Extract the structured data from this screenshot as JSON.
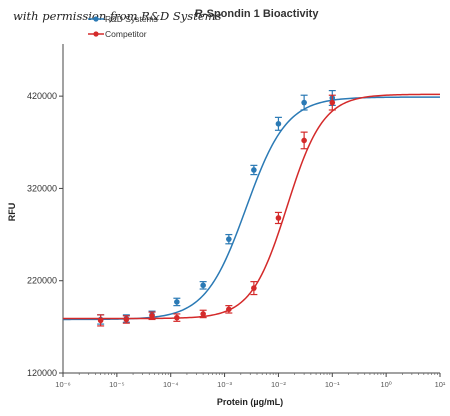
{
  "watermark": "with permission from R&D Systems",
  "chart_data": {
    "type": "scatter",
    "title": "R-Spondin 1 Bioactivity",
    "xlabel": "Protein (µg/mL)",
    "ylabel": "RFU",
    "x_scale": "log",
    "xlim": [
      1e-06,
      10
    ],
    "ylim": [
      120000,
      470000
    ],
    "y_ticks": [
      120000,
      220000,
      320000,
      420000
    ],
    "y_tick_labels": [
      "120000",
      "220000",
      "320000",
      "420000"
    ],
    "x_ticks": [
      1e-06,
      1e-05,
      0.0001,
      0.001,
      0.01,
      0.1,
      1,
      10
    ],
    "x_tick_labels": [
      "10⁻⁶",
      "10⁻⁵",
      "10⁻⁴",
      "10⁻³",
      "10⁻²",
      "10⁻¹",
      "10⁰",
      "10¹"
    ],
    "legend_position": "top-left",
    "grid": false,
    "series": [
      {
        "name": "R&D Systems",
        "color": "#2b7ab5",
        "x": [
          5e-06,
          1.5e-05,
          4.5e-05,
          0.00013,
          0.0004,
          0.0012,
          0.0035,
          0.01,
          0.03,
          0.1
        ],
        "y": [
          178000,
          179000,
          183000,
          197000,
          215000,
          265000,
          340000,
          390000,
          413000,
          418000
        ],
        "err": [
          5000,
          4000,
          4000,
          4000,
          4000,
          5000,
          5000,
          7000,
          8000,
          8000
        ],
        "fit": {
          "bottom": 178000,
          "top": 419000,
          "ec50": 0.0025,
          "hill": 1.15
        }
      },
      {
        "name": "Competitor",
        "color": "#d42a2a",
        "x": [
          5e-06,
          1.5e-05,
          4.5e-05,
          0.00013,
          0.0004,
          0.0012,
          0.0035,
          0.01,
          0.03,
          0.1
        ],
        "y": [
          177000,
          178000,
          182000,
          180000,
          184000,
          189000,
          212000,
          288000,
          372000,
          413000
        ],
        "err": [
          6000,
          4000,
          4000,
          4000,
          4000,
          4000,
          7000,
          6000,
          9000,
          8000
        ],
        "fit": {
          "bottom": 179000,
          "top": 422000,
          "ec50": 0.0145,
          "hill": 1.3
        }
      }
    ]
  }
}
